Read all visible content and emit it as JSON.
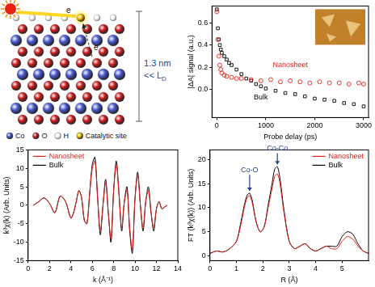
{
  "diagram": {
    "dimension": {
      "text": "1.3 nm",
      "relation": "<< L",
      "subscript": "D"
    },
    "electron_labels": [
      "e",
      "e"
    ],
    "legend": [
      {
        "label": "Co",
        "color": "#4a5bd4"
      },
      {
        "label": "O",
        "color": "#d42020"
      },
      {
        "label": "H",
        "color": "#ffffff"
      },
      {
        "label": "Catalytic site",
        "color": "#f2c200"
      }
    ]
  },
  "chart_data": [
    {
      "type": "scatter",
      "x_label": "Probe delay (ps)",
      "y_label": "|ΔA| signal (a.u.)",
      "xlim": [
        -100,
        3100
      ],
      "xticks": [
        0,
        1000,
        2000,
        3000
      ],
      "ylim": [
        -0.25,
        0.75
      ],
      "yticks": [
        {
          "value": 0,
          "label": "0.0"
        },
        0.2,
        0.4,
        0.6
      ],
      "grid": false,
      "annotations": [
        {
          "text": "Nanosheet",
          "x": 1500,
          "y": 0.19,
          "color": "#e32119"
        },
        {
          "text": "Bulk",
          "x": 900,
          "y": -0.1,
          "color": "#000000"
        }
      ],
      "series": [
        {
          "name": "Nanosheet",
          "color": "#e32119",
          "marker": "circle",
          "line_style": "none",
          "x": [
            0,
            20,
            40,
            60,
            80,
            100,
            150,
            200,
            300,
            400,
            500,
            700,
            900,
            1100,
            1300,
            1500,
            1700,
            1900,
            2100,
            2300,
            2500,
            2700,
            2900,
            3000
          ],
          "values": [
            0.7,
            0.45,
            0.3,
            0.22,
            0.18,
            0.15,
            0.13,
            0.12,
            0.11,
            0.1,
            0.1,
            0.09,
            0.08,
            0.09,
            0.07,
            0.08,
            0.07,
            0.06,
            0.07,
            0.06,
            0.06,
            0.05,
            0.06,
            0.05
          ]
        },
        {
          "name": "Bulk",
          "color": "#000000",
          "marker": "square",
          "line_style": "none",
          "x": [
            0,
            20,
            40,
            60,
            80,
            100,
            150,
            200,
            250,
            300,
            400,
            500,
            600,
            700,
            800,
            900,
            1000,
            1200,
            1400,
            1600,
            1800,
            2000,
            2200,
            2400,
            2600,
            2800,
            3000
          ],
          "values": [
            0.72,
            0.55,
            0.45,
            0.4,
            0.36,
            0.33,
            0.3,
            0.27,
            0.24,
            0.22,
            0.18,
            0.14,
            0.1,
            0.08,
            0.05,
            0.03,
            0.01,
            -0.01,
            -0.03,
            -0.04,
            -0.06,
            -0.08,
            -0.09,
            -0.1,
            -0.12,
            -0.13,
            -0.15
          ]
        }
      ]
    },
    {
      "type": "line",
      "x_label": "k (Å⁻¹)",
      "y_label": "k³χ(k) (Arb. Units)",
      "xlim": [
        0,
        14
      ],
      "xticks": [
        0,
        2,
        4,
        6,
        8,
        10,
        12,
        14
      ],
      "ylim": [
        -15,
        15
      ],
      "yticks": [
        -15,
        -10,
        -5,
        0,
        5,
        10,
        15
      ],
      "grid": false,
      "legend": "top-left",
      "series": [
        {
          "name": "Nanosheet",
          "color": "#e32119",
          "marker": "none",
          "line_style": "solid",
          "x": [
            0.5,
            1,
            1.5,
            2,
            2.5,
            3,
            3.5,
            4,
            4.25,
            4.5,
            4.75,
            5,
            5.25,
            5.5,
            5.75,
            6,
            6.25,
            6.5,
            6.75,
            7,
            7.25,
            7.5,
            7.75,
            8,
            8.25,
            8.5,
            8.75,
            9,
            9.25,
            9.5,
            9.75,
            10,
            10.25,
            10.5,
            10.75,
            11,
            11.25,
            11.5,
            11.75,
            12,
            12.25,
            12.5,
            12.75,
            13
          ],
          "values": [
            0,
            1,
            2,
            0.5,
            -2,
            2.5,
            1,
            -3.5,
            -2,
            1,
            4,
            2,
            -4,
            -5,
            3,
            10,
            12,
            2,
            -7,
            0,
            6,
            -2,
            -9,
            4,
            11,
            3,
            -6,
            1,
            4,
            -6,
            -12,
            2,
            8,
            0,
            -6,
            1,
            4,
            -2,
            -6,
            -1,
            1,
            -1,
            -0.5,
            0
          ]
        },
        {
          "name": "Bulk",
          "color": "#000000",
          "marker": "none",
          "line_style": "solid",
          "x": [
            0.5,
            1,
            1.5,
            2,
            2.5,
            3,
            3.5,
            4,
            4.25,
            4.5,
            4.75,
            5,
            5.25,
            5.5,
            5.75,
            6,
            6.25,
            6.5,
            6.75,
            7,
            7.25,
            7.5,
            7.75,
            8,
            8.25,
            8.5,
            8.75,
            9,
            9.25,
            9.5,
            9.75,
            10,
            10.25,
            10.5,
            10.75,
            11,
            11.25,
            11.5,
            11.75,
            12,
            12.25,
            12.5,
            12.75,
            13
          ],
          "values": [
            0,
            1,
            2,
            0.5,
            -2,
            2.5,
            1,
            -3.5,
            -2,
            1,
            4,
            2,
            -4,
            -5,
            3,
            11,
            13,
            2,
            -8,
            0,
            7,
            -2,
            -10,
            4,
            12,
            3,
            -7,
            1,
            5,
            -7,
            -13,
            2,
            9,
            0,
            -7,
            1,
            5,
            -2,
            -7,
            -1,
            1,
            -1,
            -0.5,
            0
          ]
        }
      ]
    },
    {
      "type": "line",
      "x_label": "R (Å)",
      "y_label": "FT (k³χ(k)) (Arb. Units)",
      "xlim": [
        0,
        6
      ],
      "xticks": [
        0,
        1,
        2,
        3,
        4,
        5
      ],
      "ylim": [
        -1,
        22
      ],
      "yticks": [
        0,
        5,
        10,
        15,
        20
      ],
      "grid": false,
      "legend": "top-right",
      "annotations": [
        {
          "text": "Co-O",
          "x": 1.5,
          "y": 17,
          "target_y": 13.5,
          "color": "#1f3f8f"
        },
        {
          "text": "Co-Co",
          "x": 2.55,
          "y": 21.5,
          "target_y": 19,
          "color": "#1f3f8f"
        }
      ],
      "series": [
        {
          "name": "Nanosheet",
          "color": "#e32119",
          "marker": "none",
          "line_style": "solid",
          "x": [
            0,
            0.25,
            0.5,
            0.75,
            1,
            1.15,
            1.3,
            1.4,
            1.5,
            1.6,
            1.75,
            1.9,
            2.05,
            2.2,
            2.35,
            2.45,
            2.55,
            2.65,
            2.8,
            3,
            3.2,
            3.4,
            3.6,
            3.8,
            4,
            4.2,
            4.4,
            4.6,
            4.8,
            5,
            5.2,
            5.4,
            5.6,
            5.8,
            6
          ],
          "values": [
            0.5,
            1,
            0.8,
            1.5,
            3,
            6,
            10,
            12,
            12.5,
            11,
            7,
            5,
            6,
            10,
            14,
            16.5,
            17,
            15,
            9,
            3,
            1.5,
            2,
            2.5,
            1.5,
            1,
            1.5,
            2,
            1.5,
            1.5,
            3,
            4,
            3.5,
            2,
            1,
            0.5
          ]
        },
        {
          "name": "Bulk",
          "color": "#000000",
          "marker": "none",
          "line_style": "solid",
          "x": [
            0,
            0.25,
            0.5,
            0.75,
            1,
            1.15,
            1.3,
            1.4,
            1.5,
            1.6,
            1.75,
            1.9,
            2.05,
            2.2,
            2.35,
            2.45,
            2.55,
            2.65,
            2.8,
            3,
            3.2,
            3.4,
            3.6,
            3.8,
            4,
            4.2,
            4.4,
            4.6,
            4.8,
            5,
            5.2,
            5.4,
            5.6,
            5.8,
            6
          ],
          "values": [
            0.5,
            1,
            0.8,
            1.5,
            3,
            6.5,
            10.5,
            12.5,
            13,
            11.5,
            7,
            5,
            6,
            10.5,
            15,
            18,
            18.5,
            16,
            9.5,
            3,
            1.5,
            2,
            2.5,
            1.5,
            1,
            1.5,
            2,
            2,
            2,
            4,
            5,
            4.5,
            2.5,
            1,
            0.5
          ]
        }
      ]
    }
  ]
}
